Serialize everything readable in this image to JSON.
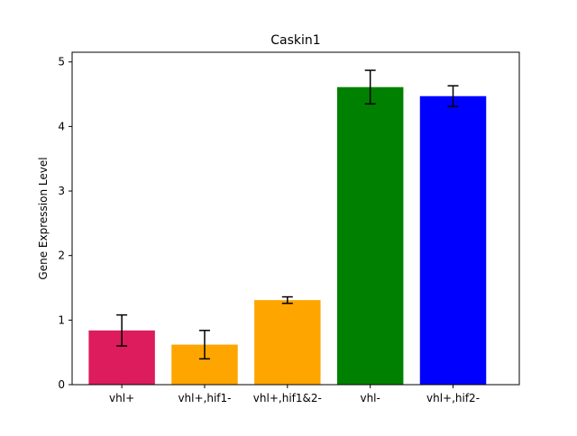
{
  "chart_data": {
    "type": "bar",
    "title": "Caskin1",
    "xlabel": "",
    "ylabel": "Gene Expression Level",
    "categories": [
      "vhl+",
      "vhl+,hif1-",
      "vhl+,hif1&2-",
      "vhl-",
      "vhl+,hif2-"
    ],
    "values": [
      0.84,
      0.62,
      1.31,
      4.61,
      4.47
    ],
    "errors": [
      0.24,
      0.22,
      0.05,
      0.26,
      0.16
    ],
    "colors": [
      "#dc1c5c",
      "#ffa500",
      "#ffa500",
      "#008000",
      "#0000ff"
    ],
    "ylim": [
      0,
      5.15
    ],
    "yticks": [
      0,
      1,
      2,
      3,
      4,
      5
    ],
    "grid": false,
    "legend": "none"
  }
}
